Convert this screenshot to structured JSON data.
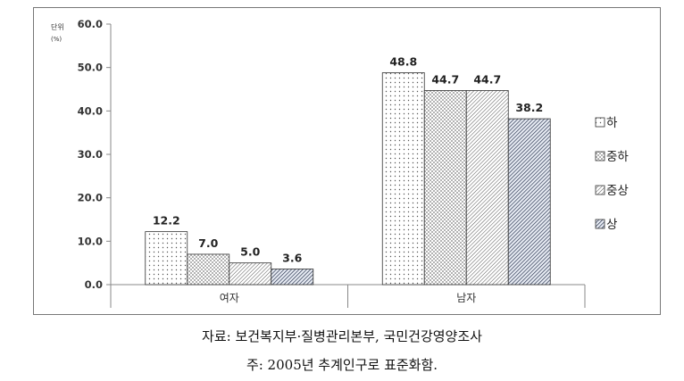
{
  "chart_data": {
    "type": "bar",
    "unit_label": "단위",
    "unit_sub": "(%)",
    "categories": [
      "여자",
      "남자"
    ],
    "series": [
      {
        "name": "하",
        "values": [
          12.2,
          48.8
        ],
        "pattern": "dots"
      },
      {
        "name": "중하",
        "values": [
          7.0,
          44.7
        ],
        "pattern": "crosshatch"
      },
      {
        "name": "중상",
        "values": [
          5.0,
          44.7
        ],
        "pattern": "diagonal-dense"
      },
      {
        "name": "상",
        "values": [
          3.6,
          38.2
        ],
        "pattern": "diagonal-dark"
      }
    ],
    "yticks": [
      "0.0",
      "10.0",
      "20.0",
      "30.0",
      "40.0",
      "50.0",
      "60.0"
    ],
    "ylim": [
      0,
      60
    ],
    "legend_position": "right",
    "grid": false
  },
  "captions": {
    "source": "자료: 보건복지부·질병관리본부, 국민건강영양조사",
    "note": "주: 2005년 추계인구로 표준화함."
  }
}
